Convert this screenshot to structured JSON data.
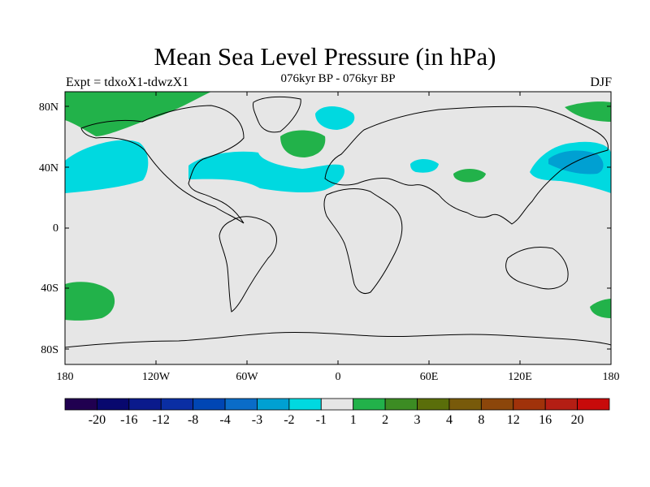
{
  "header": {
    "title": "Mean Sea Level Pressure (in hPa)",
    "subtitle": "076kyr BP - 076kyr BP",
    "left_label": "Expt = tdxoX1-tdwzX1",
    "right_label": "DJF"
  },
  "map": {
    "background_color": "#e6e6e6",
    "lat_ticks": [
      "80N",
      "40N",
      "0",
      "40S",
      "80S"
    ],
    "lon_ticks": [
      "180",
      "120W",
      "60W",
      "0",
      "60E",
      "120E",
      "180"
    ],
    "anomalies": [
      {
        "name": "north-pacific-low-anomaly",
        "level": -2,
        "color": "#00d9e0"
      },
      {
        "name": "north-atlantic-low-anomaly",
        "level": -2,
        "color": "#00d9e0"
      },
      {
        "name": "northwest-pacific-low-anomaly",
        "level": -2,
        "color": "#00d9e0"
      },
      {
        "name": "northwest-pacific-core-anomaly",
        "level": -3,
        "color": "#00a0d2"
      },
      {
        "name": "greenland-sea-low-anomaly",
        "level": -2,
        "color": "#00d9e0"
      },
      {
        "name": "arctic-high-anomaly",
        "level": 2,
        "color": "#22b24a"
      },
      {
        "name": "north-atlantic-high-anomaly",
        "level": 2,
        "color": "#22b24a"
      },
      {
        "name": "south-pacific-high-anomaly",
        "level": 2,
        "color": "#22b24a"
      }
    ]
  },
  "colorbar": {
    "colors": [
      "#200050",
      "#08086e",
      "#0a1a8c",
      "#0a2ea3",
      "#0046b4",
      "#0a6cc8",
      "#00a0d2",
      "#00d9e0",
      "#e6e6e6",
      "#22b24a",
      "#3c8c23",
      "#5a6e0a",
      "#785a0a",
      "#8c460a",
      "#a0320a",
      "#b41e14",
      "#c80a0a"
    ],
    "labels": [
      "-20",
      "-16",
      "-12",
      "-8",
      "-4",
      "-3",
      "-2",
      "-1",
      "1",
      "2",
      "3",
      "4",
      "8",
      "12",
      "16",
      "20"
    ]
  }
}
